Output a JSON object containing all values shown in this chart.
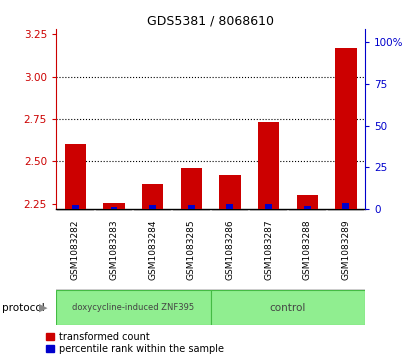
{
  "title": "GDS5381 / 8068610",
  "samples": [
    "GSM1083282",
    "GSM1083283",
    "GSM1083284",
    "GSM1083285",
    "GSM1083286",
    "GSM1083287",
    "GSM1083288",
    "GSM1083289"
  ],
  "transformed_count": [
    2.6,
    2.255,
    2.365,
    2.46,
    2.42,
    2.73,
    2.3,
    3.17
  ],
  "percentile_rank": [
    5,
    3,
    5,
    5,
    7,
    7,
    4,
    8
  ],
  "percentile_scale": 0.004,
  "ylim_left": [
    2.22,
    3.28
  ],
  "yticks_left": [
    2.25,
    2.5,
    2.75,
    3.0,
    3.25
  ],
  "ylim_right": [
    0,
    108
  ],
  "yticks_right": [
    0,
    25,
    50,
    75,
    100
  ],
  "yticklabels_right": [
    "0",
    "25",
    "50",
    "75",
    "100%"
  ],
  "bar_bottom": 2.22,
  "group1_label": "doxycycline-induced ZNF395",
  "group2_label": "control",
  "group_color": "#90EE90",
  "group_border_color": "#44bb44",
  "red_color": "#CC0000",
  "blue_color": "#0000CC",
  "bar_width": 0.55,
  "blue_bar_width": 0.18,
  "background_color": "#d8d8d8",
  "plot_bg": "#ffffff",
  "protocol_label": "protocol",
  "legend_items": [
    "transformed count",
    "percentile rank within the sample"
  ],
  "title_fontsize": 9,
  "tick_fontsize": 7.5,
  "label_fontsize": 6.5
}
